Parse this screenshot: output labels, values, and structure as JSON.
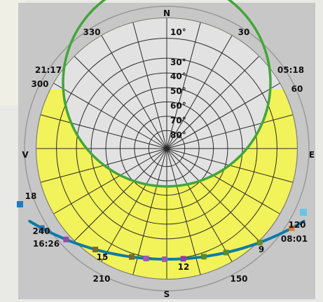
{
  "diagram": {
    "compass": {
      "north": "N",
      "south": "S",
      "east": "E",
      "west": "V"
    },
    "azimuth_labels": [
      {
        "text": "330",
        "az": 330
      },
      {
        "text": "30",
        "az": 30
      },
      {
        "text": "300",
        "az": 300
      },
      {
        "text": "60",
        "az": 60
      },
      {
        "text": "240",
        "az": 240
      },
      {
        "text": "120",
        "az": 120
      },
      {
        "text": "210",
        "az": 210
      },
      {
        "text": "150",
        "az": 150
      }
    ],
    "altitude_labels": [
      "10°",
      "30°",
      "40°",
      "50°",
      "60°",
      "70°",
      "80°"
    ],
    "sunset_time_summer": "21:17",
    "sunrise_time_summer": "05:18",
    "sunset_time_winter": "16:26",
    "sunrise_time_winter": "08:01",
    "hour_labels": [
      {
        "text": "18",
        "az": 252
      },
      {
        "text": "15",
        "az": 206
      },
      {
        "text": "12",
        "az": 181
      },
      {
        "text": "9",
        "az": 143
      }
    ],
    "colors": {
      "background": "#e9e9e6",
      "panel": "#c7c7c7",
      "disc": "#e2e2e2",
      "sun_region": "#f2f25a",
      "summer_path": "#43a53a",
      "winter_path": "#0d7aa8",
      "gridline": "#1d1d1d"
    },
    "winter_path_markers": [
      {
        "az": 252,
        "color": "#2a6db6"
      },
      {
        "az": 239,
        "color": "#8a4fa6"
      },
      {
        "az": 224,
        "color": "#7a6a2a"
      },
      {
        "az": 206,
        "color": "#7a6a2a"
      },
      {
        "az": 199,
        "color": "#a855b5"
      },
      {
        "az": 190,
        "color": "#a855b5"
      },
      {
        "az": 181,
        "color": "#8e3fa8"
      },
      {
        "az": 171,
        "color": "#5a8a2a"
      },
      {
        "az": 160,
        "color": "#5a8a2a"
      },
      {
        "az": 143,
        "color": "#6a8a2a"
      },
      {
        "az": 126,
        "color": "#e27a2a"
      }
    ]
  }
}
